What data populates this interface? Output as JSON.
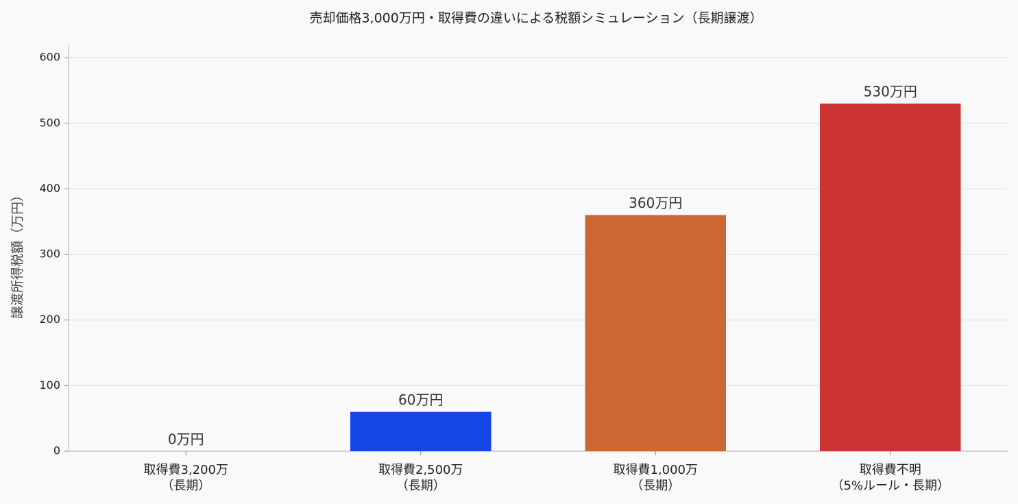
{
  "chart_data": {
    "type": "bar",
    "title": "売却価格3,000万円・取得費の違いによる税額シミュレーション（長期譲渡）",
    "y_label": "譲渡所得税額（万円）",
    "categories": [
      [
        "取得費3,200万",
        "（長期）"
      ],
      [
        "取得費2,500万",
        "（長期）"
      ],
      [
        "取得費1,000万",
        "（長期）"
      ],
      [
        "取得費不明",
        "（5%ルール・長期）"
      ]
    ],
    "values": [
      0,
      60,
      360,
      530
    ],
    "value_labels": [
      "0万円",
      "60万円",
      "360万円",
      "530万円"
    ],
    "colors": [
      null,
      "#1646e6",
      "#cb6733",
      "#cc3333"
    ],
    "ylim": [
      0,
      620
    ],
    "yticks": [
      0,
      100,
      200,
      300,
      400,
      500,
      600
    ],
    "grid": true
  }
}
